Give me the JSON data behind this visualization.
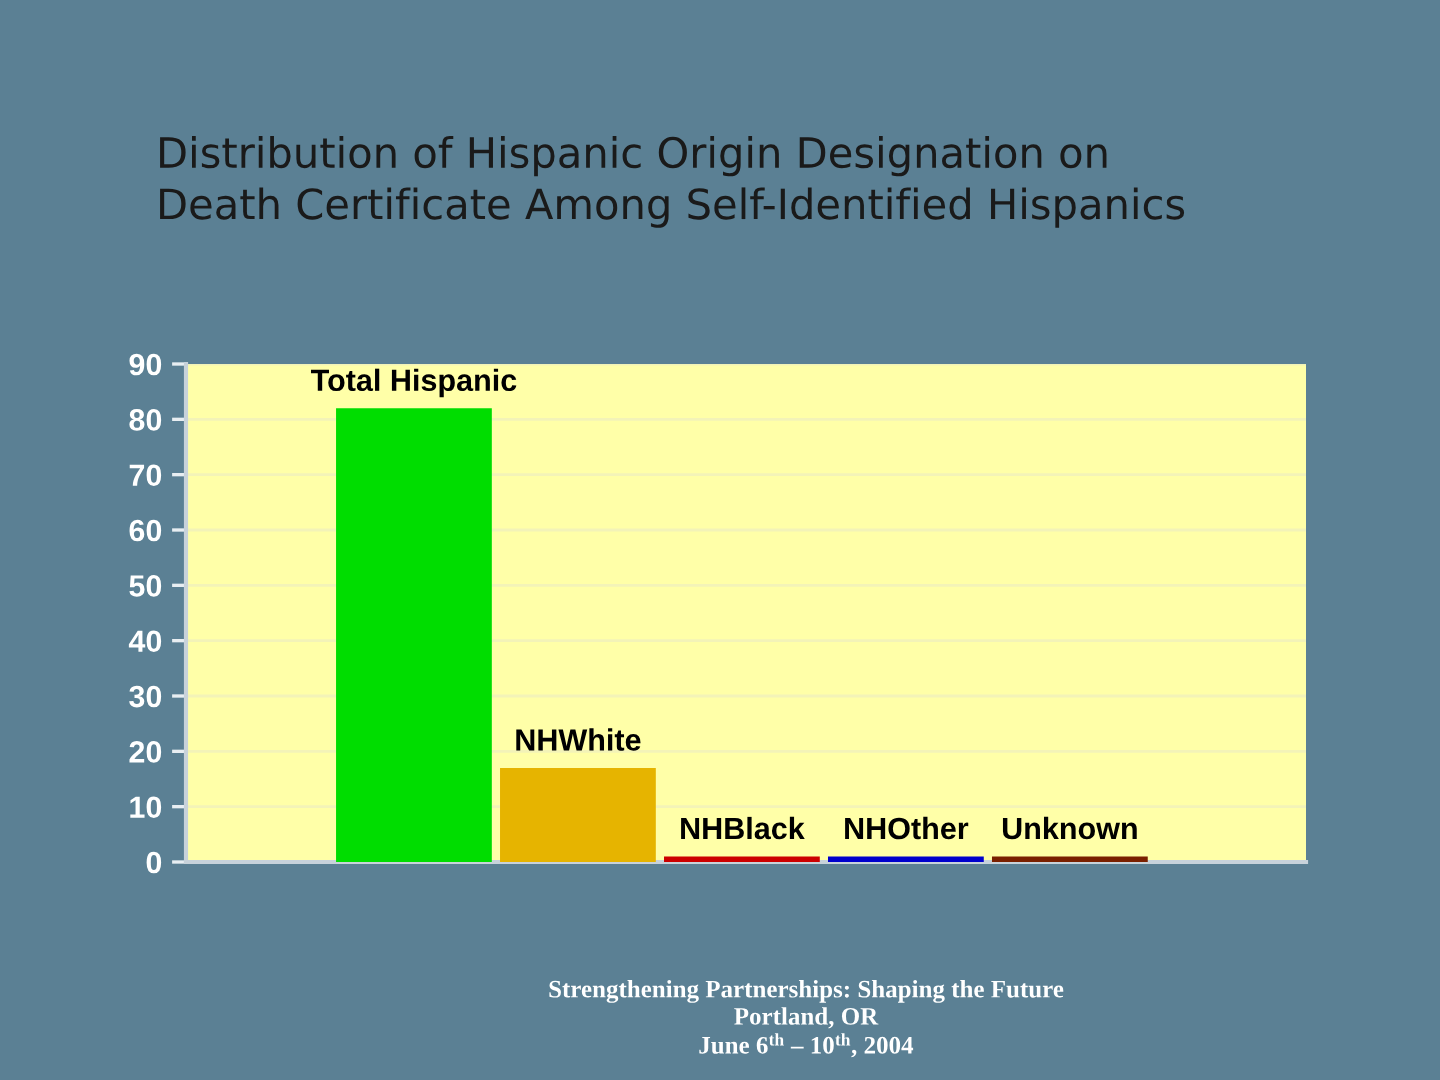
{
  "chart_data": {
    "type": "bar",
    "title": "Distribution of Hispanic Origin Designation on\nDeath Certificate Among Self-Identified Hispanics",
    "categories": [
      "Total Hispanic",
      "NHWhite",
      "NHBlack",
      "NHOther",
      "Unknown"
    ],
    "values": [
      82,
      17,
      1,
      1,
      1
    ],
    "colors": [
      "#00dd00",
      "#e6b400",
      "#cc0000",
      "#0000cc",
      "#7a2000"
    ],
    "ylim": [
      0,
      90
    ],
    "yticks": [
      0,
      10,
      20,
      30,
      40,
      50,
      60,
      70,
      80,
      90
    ],
    "grid": "y",
    "annotations": [
      "Strengthening Partnerships: Shaping the Future\nPortland, OR\nJune 6$^{th}$ – 10$^{th}$, 2004"
    ]
  }
}
